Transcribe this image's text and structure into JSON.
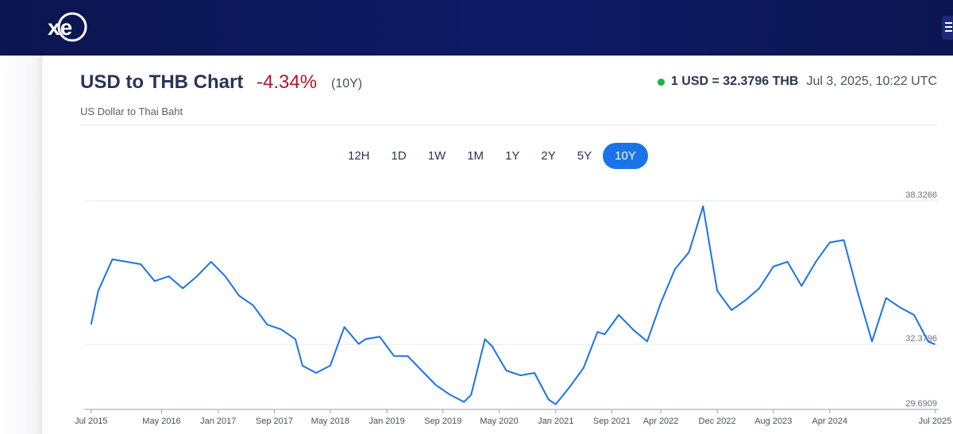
{
  "header": {
    "logo_text": "xe",
    "logo_icon": "xe-logo"
  },
  "title": "USD to THB Chart",
  "change_percent": "-4.34%",
  "period_label": "(10Y)",
  "subtitle": "US Dollar to Thai Baht",
  "rate": {
    "text": "1 USD = 32.3796 THB",
    "timestamp": "Jul 3, 2025, 10:22 UTC",
    "status_color": "#1bb34a"
  },
  "tabs": [
    {
      "label": "12H",
      "active": false
    },
    {
      "label": "1D",
      "active": false
    },
    {
      "label": "1W",
      "active": false
    },
    {
      "label": "1M",
      "active": false
    },
    {
      "label": "1Y",
      "active": false
    },
    {
      "label": "2Y",
      "active": false
    },
    {
      "label": "5Y",
      "active": false
    },
    {
      "label": "10Y",
      "active": true
    }
  ],
  "colors": {
    "line": "#1a73e8",
    "accent": "#1a73e8",
    "negative": "#b0172f",
    "header_bg": "#0f1a66"
  },
  "chart_data": {
    "type": "line",
    "title": "USD to THB Chart",
    "xlabel": "",
    "ylabel": "",
    "ylim": [
      29.6909,
      38.3266
    ],
    "y_labels": [
      "38.3266",
      "32.3796",
      "29.6909"
    ],
    "x_tick_labels": [
      "Jul 2015",
      "May 2016",
      "Jan 2017",
      "Sep 2017",
      "May 2018",
      "Jan 2019",
      "Sep 2019",
      "May 2020",
      "Jan 2021",
      "Sep 2021",
      "Apr 2022",
      "Dec 2022",
      "Aug 2023",
      "Apr 2024",
      "Jul 2025"
    ],
    "grid": true,
    "series": [
      {
        "x": [
          "2015-07",
          "2015-08",
          "2015-10",
          "2015-12",
          "2016-02",
          "2016-04",
          "2016-06",
          "2016-08",
          "2016-10",
          "2016-12",
          "2017-02",
          "2017-04",
          "2017-06",
          "2017-08",
          "2017-10",
          "2017-12",
          "2018-01",
          "2018-03",
          "2018-05",
          "2018-07",
          "2018-09",
          "2018-10",
          "2018-12",
          "2019-02",
          "2019-04",
          "2019-06",
          "2019-08",
          "2019-10",
          "2019-12",
          "2020-01",
          "2020-03",
          "2020-04",
          "2020-06",
          "2020-08",
          "2020-10",
          "2020-12",
          "2021-01",
          "2021-03",
          "2021-05",
          "2021-07",
          "2021-08",
          "2021-10",
          "2021-12",
          "2022-02",
          "2022-04",
          "2022-06",
          "2022-08",
          "2022-10",
          "2022-12",
          "2023-02",
          "2023-04",
          "2023-06",
          "2023-08",
          "2023-10",
          "2023-12",
          "2024-02",
          "2024-04",
          "2024-06",
          "2024-08",
          "2024-10",
          "2024-12",
          "2025-02",
          "2025-04",
          "2025-06",
          "2025-07"
        ],
        "values": [
          33.2,
          34.6,
          35.9,
          35.8,
          35.7,
          35.0,
          35.2,
          34.7,
          35.2,
          35.8,
          35.2,
          34.4,
          34.0,
          33.2,
          33.0,
          32.6,
          31.5,
          31.2,
          31.5,
          33.1,
          32.4,
          32.6,
          32.7,
          31.9,
          31.9,
          31.3,
          30.7,
          30.3,
          30.0,
          30.3,
          32.6,
          32.3,
          31.3,
          31.1,
          31.2,
          30.1,
          29.9,
          30.6,
          31.4,
          32.9,
          32.8,
          33.6,
          33.0,
          32.5,
          34.1,
          35.5,
          36.2,
          38.1,
          34.6,
          33.8,
          34.2,
          34.7,
          35.6,
          35.8,
          34.8,
          35.8,
          36.6,
          36.7,
          34.5,
          32.5,
          34.3,
          33.9,
          33.6,
          32.5,
          32.38
        ]
      }
    ]
  }
}
